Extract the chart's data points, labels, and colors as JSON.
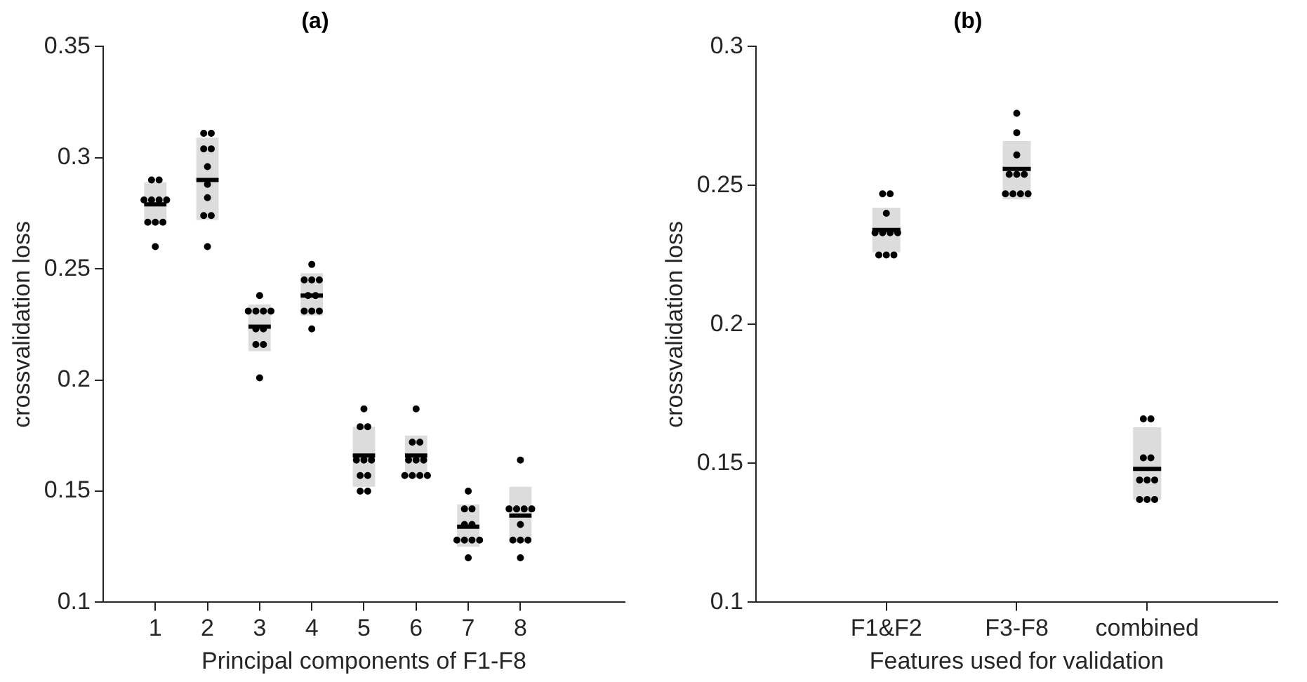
{
  "chart_data": [
    {
      "type": "box",
      "title": "(a)",
      "xlabel": "Principal components of F1-F8",
      "ylabel": "crossvalidation loss",
      "categories": [
        null,
        "1",
        "2",
        "3",
        "4",
        "5",
        "6",
        "7",
        "8",
        null,
        null
      ],
      "ylim": [
        0.1,
        0.35
      ],
      "yticks": [
        0.1,
        0.15,
        0.2,
        0.25,
        0.3,
        0.35
      ],
      "grid": false,
      "legend": false,
      "marker": "circle",
      "series": [
        {
          "type": "box",
          "color": "#dcdcdc",
          "boxes": [
            null,
            {
              "low": 0.27,
              "q1": 0.27,
              "median": 0.279,
              "q3": 0.289,
              "high": 0.289
            },
            {
              "low": 0.272,
              "q1": 0.272,
              "median": 0.29,
              "q3": 0.309,
              "high": 0.309
            },
            {
              "low": 0.213,
              "q1": 0.213,
              "median": 0.224,
              "q3": 0.234,
              "high": 0.234
            },
            {
              "low": 0.229,
              "q1": 0.229,
              "median": 0.238,
              "q3": 0.248,
              "high": 0.248
            },
            {
              "low": 0.152,
              "q1": 0.152,
              "median": 0.166,
              "q3": 0.179,
              "high": 0.179
            },
            {
              "low": 0.156,
              "q1": 0.156,
              "median": 0.166,
              "q3": 0.175,
              "high": 0.175
            },
            {
              "low": 0.125,
              "q1": 0.125,
              "median": 0.134,
              "q3": 0.144,
              "high": 0.144
            },
            {
              "low": 0.127,
              "q1": 0.127,
              "median": 0.139,
              "q3": 0.152,
              "high": 0.152
            },
            null,
            null
          ]
        },
        {
          "type": "scatter",
          "color": "#000000",
          "x": [
            "1",
            "1",
            "1",
            "1",
            "1",
            "1",
            "1",
            "1",
            "1",
            "1",
            "2",
            "2",
            "2",
            "2",
            "2",
            "2",
            "2",
            "2",
            "2",
            "2",
            "3",
            "3",
            "3",
            "3",
            "3",
            "3",
            "3",
            "3",
            "3",
            "3",
            "4",
            "4",
            "4",
            "4",
            "4",
            "4",
            "4",
            "4",
            "4",
            "4",
            "5",
            "5",
            "5",
            "5",
            "5",
            "5",
            "5",
            "5",
            "5",
            "5",
            "6",
            "6",
            "6",
            "6",
            "6",
            "6",
            "6",
            "6",
            "6",
            "6",
            "7",
            "7",
            "7",
            "7",
            "7",
            "7",
            "7",
            "7",
            "7",
            "7",
            "8",
            "8",
            "8",
            "8",
            "8",
            "8",
            "8",
            "8",
            "8",
            "8"
          ],
          "values": [
            0.29,
            0.29,
            0.281,
            0.281,
            0.281,
            0.281,
            0.271,
            0.271,
            0.271,
            0.26,
            0.311,
            0.311,
            0.304,
            0.304,
            0.296,
            0.288,
            0.282,
            0.274,
            0.274,
            0.26,
            0.238,
            0.231,
            0.231,
            0.231,
            0.231,
            0.223,
            0.223,
            0.216,
            0.216,
            0.201,
            0.252,
            0.245,
            0.245,
            0.245,
            0.238,
            0.238,
            0.231,
            0.231,
            0.231,
            0.223,
            0.187,
            0.179,
            0.179,
            0.164,
            0.164,
            0.164,
            0.157,
            0.157,
            0.15,
            0.15,
            0.187,
            0.172,
            0.172,
            0.164,
            0.164,
            0.164,
            0.157,
            0.157,
            0.157,
            0.157,
            0.15,
            0.142,
            0.142,
            0.135,
            0.135,
            0.128,
            0.128,
            0.128,
            0.128,
            0.12,
            0.164,
            0.142,
            0.142,
            0.142,
            0.142,
            0.135,
            0.128,
            0.128,
            0.128,
            0.12
          ]
        }
      ]
    },
    {
      "type": "box",
      "title": "(b)",
      "xlabel": "Features used for validation",
      "ylabel": "crossvalidation loss",
      "categories": [
        null,
        "F1&F2",
        "F3-F8",
        "combined",
        null
      ],
      "ylim": [
        0.1,
        0.3
      ],
      "yticks": [
        0.1,
        0.15,
        0.2,
        0.25,
        0.3
      ],
      "grid": false,
      "legend": false,
      "marker": "circle",
      "series": [
        {
          "type": "box",
          "color": "#dcdcdc",
          "boxes": [
            null,
            {
              "low": 0.226,
              "q1": 0.226,
              "median": 0.234,
              "q3": 0.242,
              "high": 0.242
            },
            {
              "low": 0.245,
              "q1": 0.245,
              "median": 0.256,
              "q3": 0.266,
              "high": 0.266
            },
            {
              "low": 0.137,
              "q1": 0.137,
              "median": 0.148,
              "q3": 0.163,
              "high": 0.163
            },
            null
          ]
        },
        {
          "type": "scatter",
          "color": "#000000",
          "x": [
            "F1&F2",
            "F1&F2",
            "F1&F2",
            "F1&F2",
            "F1&F2",
            "F1&F2",
            "F1&F2",
            "F1&F2",
            "F1&F2",
            "F1&F2",
            "F3-F8",
            "F3-F8",
            "F3-F8",
            "F3-F8",
            "F3-F8",
            "F3-F8",
            "F3-F8",
            "F3-F8",
            "F3-F8",
            "F3-F8",
            "combined",
            "combined",
            "combined",
            "combined",
            "combined",
            "combined",
            "combined",
            "combined",
            "combined",
            "combined"
          ],
          "values": [
            0.247,
            0.247,
            0.24,
            0.233,
            0.233,
            0.233,
            0.233,
            0.225,
            0.225,
            0.225,
            0.276,
            0.269,
            0.261,
            0.254,
            0.254,
            0.254,
            0.247,
            0.247,
            0.247,
            0.247,
            0.166,
            0.166,
            0.152,
            0.152,
            0.144,
            0.144,
            0.144,
            0.137,
            0.137,
            0.137
          ]
        }
      ]
    }
  ]
}
